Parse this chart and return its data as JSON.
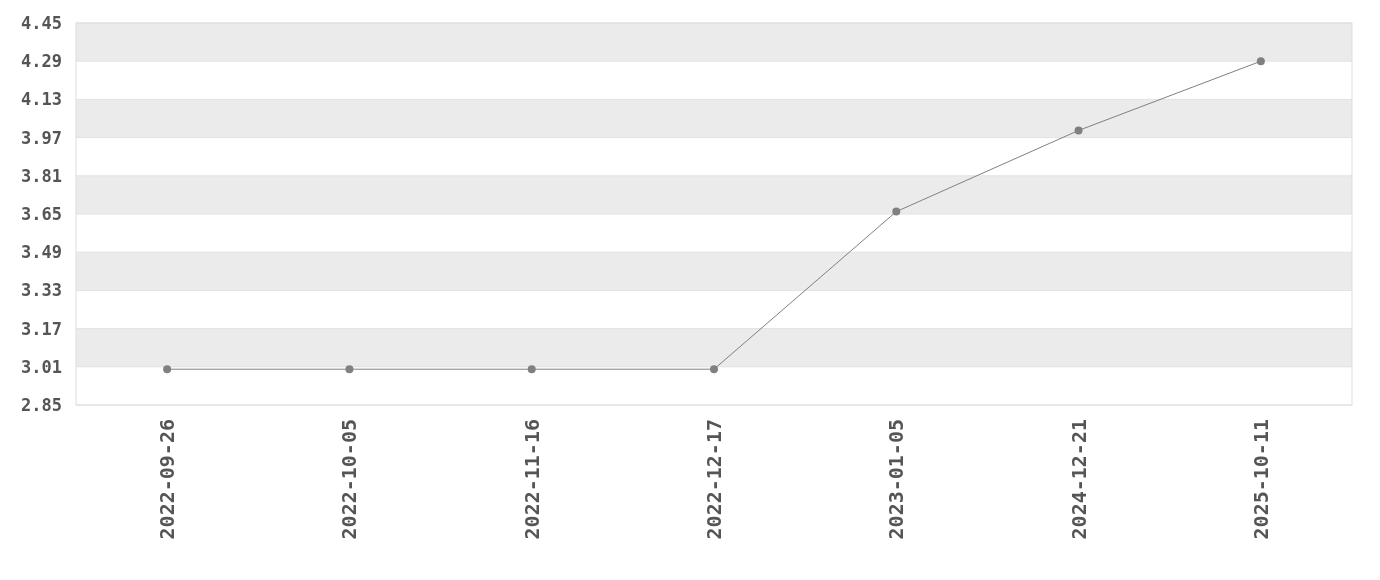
{
  "chart_data": {
    "type": "line",
    "categories": [
      "2022-09-26",
      "2022-10-05",
      "2022-11-16",
      "2022-12-17",
      "2023-01-05",
      "2024-12-21",
      "2025-10-11"
    ],
    "series": [
      {
        "color": "#808080",
        "values": [
          3.0,
          3.0,
          3.0,
          3.0,
          3.66,
          4.0,
          4.29
        ]
      }
    ],
    "ylim": [
      2.85,
      4.45
    ],
    "yticks": [
      2.85,
      3.01,
      3.17,
      3.33,
      3.49,
      3.65,
      3.81,
      3.97,
      4.13,
      4.29,
      4.45
    ],
    "grid": "y",
    "marker": "circle",
    "line_style": "solid"
  }
}
